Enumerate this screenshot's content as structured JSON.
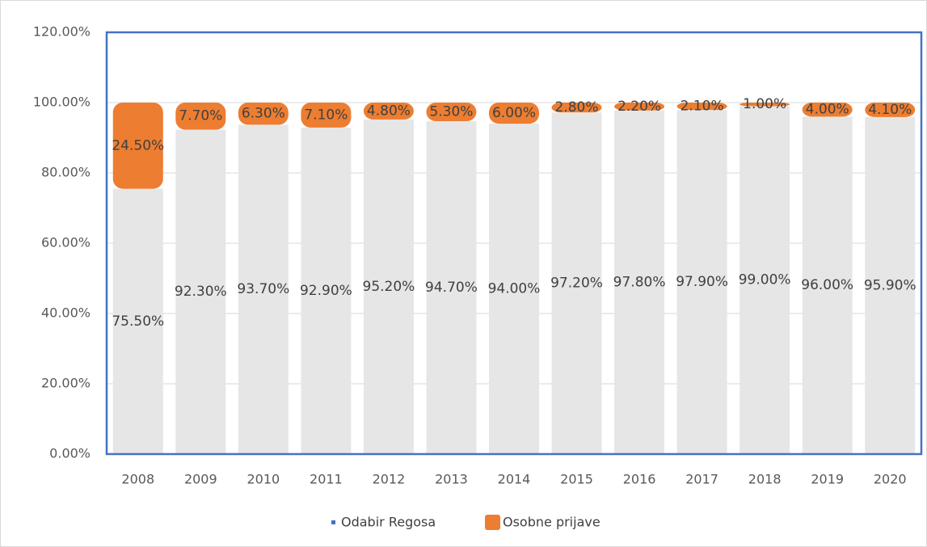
{
  "chart_data": {
    "type": "stacked_bar",
    "categories": [
      "2008",
      "2009",
      "2010",
      "2011",
      "2012",
      "2013",
      "2014",
      "2015",
      "2016",
      "2017",
      "2018",
      "2019",
      "2020"
    ],
    "series": [
      {
        "name": "Odabir Regosa",
        "color": "#e7e6e6",
        "values": [
          75.5,
          92.3,
          93.7,
          92.9,
          95.2,
          94.7,
          94.0,
          97.2,
          97.8,
          97.9,
          99.0,
          96.0,
          95.9
        ],
        "value_labels": [
          "75.50%",
          "92.30%",
          "93.70%",
          "92.90%",
          "95.20%",
          "94.70%",
          "94.00%",
          "97.20%",
          "97.80%",
          "97.90%",
          "99.00%",
          "96.00%",
          "95.90%"
        ]
      },
      {
        "name": "Osobne prijave",
        "color": "#ed7d31",
        "values": [
          24.5,
          7.7,
          6.3,
          7.1,
          4.8,
          5.3,
          6.0,
          2.8,
          2.2,
          2.1,
          1.0,
          4.0,
          4.1
        ],
        "value_labels": [
          "24.50%",
          "7.70%",
          "6.30%",
          "7.10%",
          "4.80%",
          "5.30%",
          "6.00%",
          "2.80%",
          "2.20%",
          "2.10%",
          "1.00%",
          "4.00%",
          "4.10%"
        ]
      }
    ],
    "ylim": [
      0,
      120
    ],
    "yticks": [
      {
        "value": 0,
        "label": "0.00%"
      },
      {
        "value": 20,
        "label": "20.00%"
      },
      {
        "value": 40,
        "label": "40.00%"
      },
      {
        "value": 60,
        "label": "60.00%"
      },
      {
        "value": 80,
        "label": "80.00%"
      },
      {
        "value": 100,
        "label": "100.00%"
      },
      {
        "value": 120,
        "label": "120.00%"
      }
    ],
    "grid": true,
    "legend": "bottom"
  }
}
